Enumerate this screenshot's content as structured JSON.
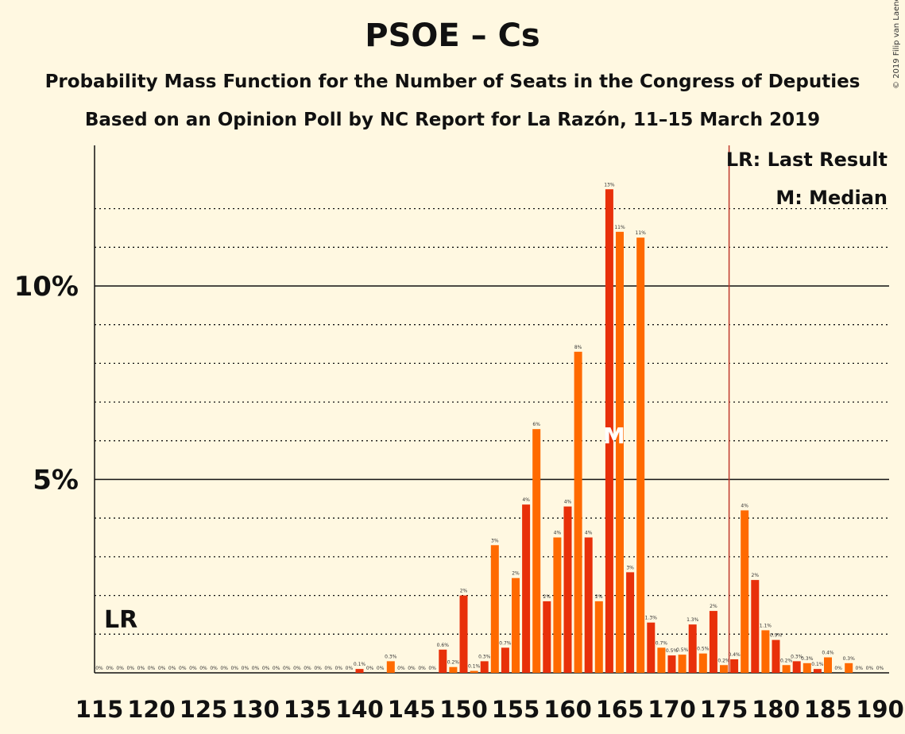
{
  "title": "PSOE – Cs",
  "subtitle1": "Probability Mass Function for the Number of Seats in the Congress of Deputies",
  "subtitle2": "Based on an Opinion Poll by NC Report for La Razón, 11–15 March 2019",
  "copyright": "© 2019 Filip van Laenen",
  "legend": {
    "lr": "LR: Last Result",
    "median": "M: Median"
  },
  "colors": {
    "background": "#FFF8E1",
    "bar_dark": "#E8300A",
    "bar_light": "#FF6A00",
    "last_result_line": "#C0392B",
    "text": "#111111"
  },
  "chart_data": {
    "type": "bar",
    "ylim": [
      0,
      13.5
    ],
    "yticks": [
      {
        "value": 5,
        "label": "5%"
      },
      {
        "value": 10,
        "label": "10%"
      }
    ],
    "xtick_labels": [
      "115",
      "120",
      "125",
      "130",
      "135",
      "140",
      "145",
      "150",
      "155",
      "160",
      "165",
      "170",
      "175",
      "180",
      "185",
      "190"
    ],
    "last_result": {
      "seat": 176,
      "label": "LR"
    },
    "median": {
      "seat": 164,
      "label": "M"
    },
    "bars": [
      {
        "seat": 115,
        "value": 0,
        "label": "0%"
      },
      {
        "seat": 116,
        "value": 0,
        "label": "0%"
      },
      {
        "seat": 117,
        "value": 0,
        "label": "0%"
      },
      {
        "seat": 118,
        "value": 0,
        "label": "0%"
      },
      {
        "seat": 119,
        "value": 0,
        "label": "0%"
      },
      {
        "seat": 120,
        "value": 0,
        "label": "0%"
      },
      {
        "seat": 121,
        "value": 0,
        "label": "0%"
      },
      {
        "seat": 122,
        "value": 0,
        "label": "0%"
      },
      {
        "seat": 123,
        "value": 0,
        "label": "0%"
      },
      {
        "seat": 124,
        "value": 0,
        "label": "0%"
      },
      {
        "seat": 125,
        "value": 0,
        "label": "0%"
      },
      {
        "seat": 126,
        "value": 0,
        "label": "0%"
      },
      {
        "seat": 127,
        "value": 0,
        "label": "0%"
      },
      {
        "seat": 128,
        "value": 0,
        "label": "0%"
      },
      {
        "seat": 129,
        "value": 0,
        "label": "0%"
      },
      {
        "seat": 130,
        "value": 0,
        "label": "0%"
      },
      {
        "seat": 131,
        "value": 0,
        "label": "0%"
      },
      {
        "seat": 132,
        "value": 0,
        "label": "0%"
      },
      {
        "seat": 133,
        "value": 0,
        "label": "0%"
      },
      {
        "seat": 134,
        "value": 0,
        "label": "0%"
      },
      {
        "seat": 135,
        "value": 0,
        "label": "0%"
      },
      {
        "seat": 136,
        "value": 0,
        "label": "0%"
      },
      {
        "seat": 137,
        "value": 0,
        "label": "0%"
      },
      {
        "seat": 138,
        "value": 0,
        "label": "0%"
      },
      {
        "seat": 139,
        "value": 0,
        "label": "0%"
      },
      {
        "seat": 140,
        "value": 0.1,
        "label": "0.1%"
      },
      {
        "seat": 141,
        "value": 0,
        "label": "0%"
      },
      {
        "seat": 142,
        "value": 0,
        "label": "0%"
      },
      {
        "seat": 143,
        "value": 0.3,
        "label": "0.3%"
      },
      {
        "seat": 144,
        "value": 0,
        "label": "0%"
      },
      {
        "seat": 145,
        "value": 0,
        "label": "0%"
      },
      {
        "seat": 146,
        "value": 0,
        "label": "0%"
      },
      {
        "seat": 147,
        "value": 0,
        "label": "0%"
      },
      {
        "seat": 148,
        "value": 0.6,
        "label": "0.6%"
      },
      {
        "seat": 149,
        "value": 0.15,
        "label": "0.2%"
      },
      {
        "seat": 150,
        "value": 2.0,
        "label": "2%"
      },
      {
        "seat": 151,
        "value": 0.05,
        "label": "0.1%"
      },
      {
        "seat": 152,
        "value": 0.3,
        "label": "0.3%"
      },
      {
        "seat": 153,
        "value": 3.3,
        "label": "3%"
      },
      {
        "seat": 154,
        "value": 0.65,
        "label": "0.7%"
      },
      {
        "seat": 155,
        "value": 2.45,
        "label": "2%"
      },
      {
        "seat": 156,
        "value": 4.35,
        "label": "4%"
      },
      {
        "seat": 157,
        "value": 6.3,
        "label": "6%"
      },
      {
        "seat": 158,
        "value": 1.85,
        "label": "2%"
      },
      {
        "seat": 159,
        "value": 3.5,
        "label": "4%"
      },
      {
        "seat": 160,
        "value": 4.3,
        "label": "4%"
      },
      {
        "seat": 161,
        "value": 8.3,
        "label": "8%"
      },
      {
        "seat": 162,
        "value": 3.5,
        "label": "4%"
      },
      {
        "seat": 163,
        "value": 1.85,
        "label": "2%"
      },
      {
        "seat": 164,
        "value": 12.5,
        "label": "13%"
      },
      {
        "seat": 165,
        "value": 11.4,
        "label": "11%"
      },
      {
        "seat": 166,
        "value": 2.6,
        "label": "3%"
      },
      {
        "seat": 167,
        "value": 11.25,
        "label": "11%"
      },
      {
        "seat": 168,
        "value": 1.3,
        "label": "1.3%"
      },
      {
        "seat": 169,
        "value": 0.65,
        "label": "0.7%"
      },
      {
        "seat": 170,
        "value": 0.45,
        "label": "0.5%"
      },
      {
        "seat": 171,
        "value": 0.47,
        "label": "0.5%"
      },
      {
        "seat": 172,
        "value": 1.25,
        "label": "1.3%"
      },
      {
        "seat": 173,
        "value": 0.5,
        "label": "0.5%"
      },
      {
        "seat": 174,
        "value": 1.6,
        "label": "2%"
      },
      {
        "seat": 175,
        "value": 0.2,
        "label": "0.2%"
      },
      {
        "seat": 176,
        "value": 0.35,
        "label": "0.4%"
      },
      {
        "seat": 177,
        "value": 4.2,
        "label": "4%"
      },
      {
        "seat": 178,
        "value": 2.4,
        "label": "2%"
      },
      {
        "seat": 179,
        "value": 1.1,
        "label": "1.1%"
      },
      {
        "seat": 180,
        "value": 0.85,
        "label": "0.9%"
      },
      {
        "seat": 181,
        "value": 0.2,
        "label": "0.2%"
      },
      {
        "seat": 182,
        "value": 0.3,
        "label": "0.3%"
      },
      {
        "seat": 183,
        "value": 0.25,
        "label": "0.3%"
      },
      {
        "seat": 184,
        "value": 0.1,
        "label": "0.1%"
      },
      {
        "seat": 185,
        "value": 0.4,
        "label": "0.4%"
      },
      {
        "seat": 186,
        "value": 0,
        "label": "0%"
      },
      {
        "seat": 187,
        "value": 0.25,
        "label": "0.3%"
      },
      {
        "seat": 188,
        "value": 0,
        "label": "0%"
      },
      {
        "seat": 189,
        "value": 0,
        "label": "0%"
      },
      {
        "seat": 190,
        "value": 0,
        "label": "0%"
      }
    ]
  }
}
